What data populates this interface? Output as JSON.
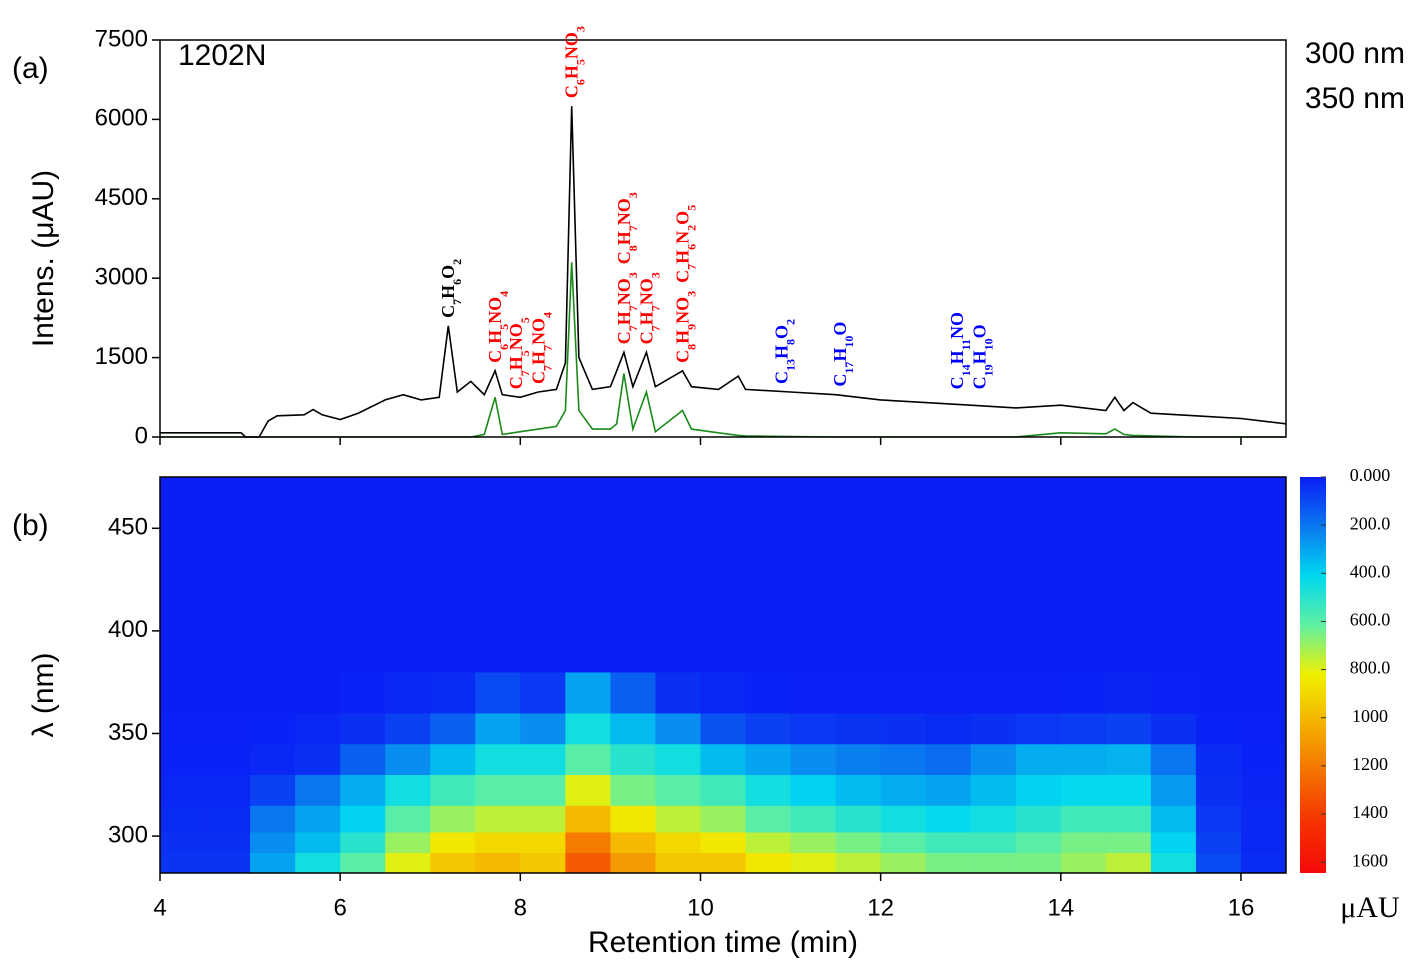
{
  "chart_data": [
    {
      "type": "line",
      "panel_label": "(a)",
      "title": "1202N",
      "ylabel": "Intens. (μAU)",
      "xlim": [
        4,
        16.5
      ],
      "xticks": [
        4,
        6,
        8,
        10,
        12,
        14,
        16
      ],
      "ylim": [
        0,
        7500
      ],
      "yticks": [
        0,
        1500,
        3000,
        4500,
        6000,
        7500
      ],
      "x": [
        4.0,
        4.9,
        4.95,
        5.1,
        5.2,
        5.3,
        5.6,
        5.7,
        5.8,
        6.0,
        6.2,
        6.5,
        6.7,
        6.9,
        7.1,
        7.2,
        7.3,
        7.45,
        7.6,
        7.72,
        7.8,
        8.0,
        8.2,
        8.4,
        8.5,
        8.57,
        8.65,
        8.8,
        9.0,
        9.07,
        9.15,
        9.25,
        9.4,
        9.5,
        9.8,
        9.9,
        10.2,
        10.42,
        10.5,
        11.0,
        11.5,
        12.0,
        12.5,
        13.0,
        13.5,
        14.0,
        14.5,
        14.6,
        14.7,
        14.8,
        15.0,
        15.5,
        16.0,
        16.5
      ],
      "series": [
        {
          "name": "300 nm",
          "color": "#000000",
          "values": [
            80,
            80,
            0,
            0,
            300,
            400,
            420,
            520,
            420,
            330,
            450,
            700,
            800,
            700,
            750,
            2100,
            850,
            1050,
            800,
            1250,
            800,
            750,
            850,
            900,
            1400,
            6250,
            1500,
            900,
            950,
            1250,
            1600,
            950,
            1600,
            950,
            1250,
            950,
            900,
            1150,
            900,
            850,
            800,
            700,
            650,
            600,
            550,
            600,
            500,
            750,
            500,
            650,
            450,
            400,
            350,
            250
          ]
        },
        {
          "name": "350 nm",
          "color": "#1a8a1a",
          "values": [
            0,
            0,
            0,
            0,
            0,
            0,
            0,
            0,
            0,
            0,
            0,
            0,
            0,
            0,
            0,
            0,
            0,
            0,
            50,
            750,
            50,
            100,
            150,
            200,
            500,
            3300,
            500,
            150,
            150,
            250,
            1200,
            150,
            850,
            100,
            500,
            150,
            80,
            30,
            20,
            10,
            0,
            0,
            0,
            0,
            0,
            80,
            60,
            150,
            50,
            30,
            20,
            0,
            0,
            0
          ]
        }
      ],
      "annotations": [
        {
          "text": "C7H6O2",
          "x": 7.2,
          "color": "#000000"
        },
        {
          "text": "C6H5NO4",
          "x": 7.72,
          "color": "#ff0000"
        },
        {
          "text": "C7H5NO5",
          "x": 7.95,
          "color": "#ff0000"
        },
        {
          "text": "C7H7NO4",
          "x": 8.2,
          "color": "#ff0000"
        },
        {
          "text": "C6H5NO3",
          "x": 8.57,
          "color": "#ff0000"
        },
        {
          "text": "C7H7NO3",
          "x": 9.15,
          "color": "#ff0000"
        },
        {
          "text": "C8H7NO3",
          "x": 9.15,
          "color": "#ff0000"
        },
        {
          "text": "C7H7NO3",
          "x": 9.4,
          "color": "#ff0000"
        },
        {
          "text": "C8H9NO3",
          "x": 9.8,
          "color": "#ff0000"
        },
        {
          "text": "C7H6N2O5",
          "x": 9.8,
          "color": "#ff0000"
        },
        {
          "text": "C13H8O2",
          "x": 10.9,
          "color": "#0000ff"
        },
        {
          "text": "C17H10O",
          "x": 11.55,
          "color": "#0000ff"
        },
        {
          "text": "C14H11NO",
          "x": 12.85,
          "color": "#0000ff"
        },
        {
          "text": "C19H10O",
          "x": 13.1,
          "color": "#0000ff"
        }
      ]
    },
    {
      "type": "heatmap",
      "panel_label": "(b)",
      "ylabel": "λ (nm)",
      "xlabel": "Retention time (min)",
      "xlim": [
        4,
        16.5
      ],
      "xticks": [
        4,
        6,
        8,
        10,
        12,
        14,
        16
      ],
      "ylim": [
        282,
        475
      ],
      "yticks": [
        300,
        350,
        400,
        450
      ],
      "xbins": [
        4,
        4.5,
        5,
        5.5,
        6,
        6.5,
        7,
        7.5,
        8,
        8.5,
        9,
        9.5,
        10,
        10.5,
        11,
        11.5,
        12,
        12.5,
        13,
        13.5,
        14,
        14.5,
        15,
        15.5,
        16,
        16.5
      ],
      "ybins": [
        282,
        292,
        302,
        315,
        330,
        345,
        360,
        380,
        475
      ],
      "z": [
        [
          50,
          50,
          300,
          450,
          600,
          800,
          950,
          1000,
          950,
          1300,
          1100,
          950,
          950,
          850,
          800,
          750,
          700,
          650,
          650,
          650,
          700,
          750,
          450,
          100,
          30
        ],
        [
          40,
          40,
          250,
          350,
          500,
          700,
          850,
          900,
          900,
          1200,
          1000,
          900,
          850,
          750,
          700,
          650,
          600,
          550,
          550,
          600,
          650,
          650,
          400,
          80,
          20
        ],
        [
          30,
          30,
          200,
          300,
          400,
          600,
          700,
          750,
          750,
          1000,
          850,
          750,
          700,
          600,
          550,
          500,
          450,
          420,
          450,
          500,
          550,
          550,
          350,
          60,
          20
        ],
        [
          20,
          20,
          80,
          200,
          320,
          450,
          550,
          600,
          600,
          800,
          650,
          600,
          550,
          450,
          400,
          350,
          320,
          300,
          350,
          400,
          420,
          420,
          280,
          40,
          15
        ],
        [
          10,
          10,
          20,
          40,
          150,
          250,
          350,
          450,
          450,
          600,
          500,
          450,
          350,
          300,
          250,
          220,
          200,
          180,
          250,
          320,
          320,
          330,
          200,
          30,
          10
        ],
        [
          5,
          5,
          10,
          20,
          40,
          80,
          150,
          300,
          250,
          450,
          350,
          250,
          120,
          80,
          60,
          50,
          40,
          30,
          40,
          60,
          70,
          80,
          40,
          10,
          5
        ],
        [
          0,
          0,
          0,
          0,
          10,
          20,
          30,
          100,
          60,
          300,
          150,
          40,
          20,
          10,
          5,
          5,
          5,
          5,
          5,
          5,
          10,
          15,
          5,
          0,
          0
        ],
        [
          0,
          0,
          0,
          0,
          0,
          0,
          0,
          0,
          0,
          0,
          0,
          0,
          0,
          0,
          0,
          0,
          0,
          0,
          0,
          0,
          0,
          0,
          0,
          0,
          0
        ]
      ],
      "colorbar": {
        "label": "μAU",
        "lim": [
          0,
          1645
        ],
        "ticks": [
          {
            "value": 0,
            "label": "0.000"
          },
          {
            "value": 200,
            "label": "200.0"
          },
          {
            "value": 400,
            "label": "400.0"
          },
          {
            "value": 600,
            "label": "600.0"
          },
          {
            "value": 800,
            "label": "800.0"
          },
          1000,
          1200,
          1400,
          1600
        ],
        "colors": [
          "#0a1ef5",
          "#0a78f0",
          "#00d8f0",
          "#60f0a0",
          "#f0f000",
          "#f5b000",
          "#f57000",
          "#f53000",
          "#f50a0a"
        ]
      }
    }
  ]
}
